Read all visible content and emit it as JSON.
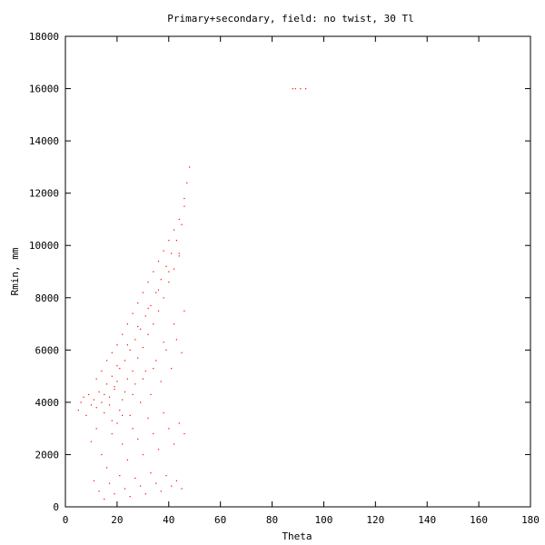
{
  "chart_data": {
    "type": "scatter",
    "title": "Primary+secondary, field: no twist, 30 Tl",
    "xlabel": "Theta",
    "ylabel": "Rmin, mm",
    "xlim": [
      0,
      180
    ],
    "ylim": [
      0,
      18000
    ],
    "xticks": [
      0,
      20,
      40,
      60,
      80,
      100,
      120,
      140,
      160,
      180
    ],
    "yticks": [
      0,
      2000,
      4000,
      6000,
      8000,
      10000,
      12000,
      14000,
      16000,
      18000
    ],
    "xtick_labels": [
      "0",
      "20",
      "40",
      "60",
      "80",
      "100",
      "120",
      "140",
      "160",
      "180"
    ],
    "ytick_labels": [
      "0",
      "2000",
      "4000",
      "6000",
      "8000",
      "10000",
      "12000",
      "14000",
      "16000",
      "18000"
    ],
    "grid": false,
    "legend": "none",
    "marker_color": "#ff0000",
    "series": [
      {
        "points": [
          [
            5,
            3700
          ],
          [
            6,
            4000
          ],
          [
            7,
            4200
          ],
          [
            8,
            3500
          ],
          [
            9,
            4300
          ],
          [
            10,
            3900
          ],
          [
            11,
            4100
          ],
          [
            12,
            3800
          ],
          [
            13,
            4400
          ],
          [
            14,
            4000
          ],
          [
            15,
            3600
          ],
          [
            16,
            4700
          ],
          [
            17,
            4200
          ],
          [
            18,
            5000
          ],
          [
            19,
            4500
          ],
          [
            20,
            4800
          ],
          [
            21,
            5300
          ],
          [
            22,
            4100
          ],
          [
            23,
            5600
          ],
          [
            24,
            4900
          ],
          [
            25,
            6000
          ],
          [
            26,
            5200
          ],
          [
            27,
            6400
          ],
          [
            28,
            5700
          ],
          [
            29,
            6800
          ],
          [
            30,
            6100
          ],
          [
            31,
            7300
          ],
          [
            32,
            6600
          ],
          [
            33,
            7700
          ],
          [
            34,
            7000
          ],
          [
            35,
            8200
          ],
          [
            36,
            7500
          ],
          [
            37,
            8700
          ],
          [
            38,
            8000
          ],
          [
            39,
            9200
          ],
          [
            40,
            8600
          ],
          [
            41,
            9700
          ],
          [
            42,
            9100
          ],
          [
            43,
            10200
          ],
          [
            44,
            9700
          ],
          [
            45,
            10800
          ],
          [
            46,
            11500
          ],
          [
            47,
            12400
          ],
          [
            48,
            13000
          ],
          [
            10,
            2500
          ],
          [
            12,
            3000
          ],
          [
            14,
            2000
          ],
          [
            16,
            1500
          ],
          [
            18,
            2800
          ],
          [
            20,
            3200
          ],
          [
            22,
            2400
          ],
          [
            24,
            1800
          ],
          [
            26,
            3000
          ],
          [
            28,
            2600
          ],
          [
            30,
            2000
          ],
          [
            32,
            3400
          ],
          [
            34,
            2800
          ],
          [
            36,
            2200
          ],
          [
            38,
            3600
          ],
          [
            40,
            3000
          ],
          [
            42,
            2400
          ],
          [
            44,
            3200
          ],
          [
            46,
            2800
          ],
          [
            11,
            1000
          ],
          [
            13,
            600
          ],
          [
            15,
            300
          ],
          [
            17,
            900
          ],
          [
            19,
            500
          ],
          [
            21,
            1200
          ],
          [
            23,
            700
          ],
          [
            25,
            400
          ],
          [
            27,
            1100
          ],
          [
            29,
            800
          ],
          [
            31,
            500
          ],
          [
            33,
            1300
          ],
          [
            35,
            900
          ],
          [
            37,
            600
          ],
          [
            39,
            1200
          ],
          [
            41,
            800
          ],
          [
            43,
            1000
          ],
          [
            45,
            700
          ],
          [
            12,
            4900
          ],
          [
            14,
            5200
          ],
          [
            16,
            5600
          ],
          [
            18,
            5900
          ],
          [
            20,
            6200
          ],
          [
            22,
            6600
          ],
          [
            24,
            7000
          ],
          [
            26,
            7400
          ],
          [
            28,
            7800
          ],
          [
            30,
            8200
          ],
          [
            32,
            8600
          ],
          [
            34,
            9000
          ],
          [
            36,
            9400
          ],
          [
            38,
            9800
          ],
          [
            40,
            10200
          ],
          [
            42,
            10600
          ],
          [
            44,
            11000
          ],
          [
            46,
            11800
          ],
          [
            15,
            4300
          ],
          [
            17,
            3900
          ],
          [
            19,
            4600
          ],
          [
            21,
            3700
          ],
          [
            23,
            4400
          ],
          [
            25,
            3500
          ],
          [
            27,
            4700
          ],
          [
            29,
            4000
          ],
          [
            31,
            5200
          ],
          [
            33,
            4300
          ],
          [
            35,
            5600
          ],
          [
            37,
            4800
          ],
          [
            39,
            6000
          ],
          [
            41,
            5300
          ],
          [
            43,
            6400
          ],
          [
            45,
            5900
          ],
          [
            20,
            5400
          ],
          [
            24,
            6200
          ],
          [
            28,
            6900
          ],
          [
            32,
            7600
          ],
          [
            36,
            8300
          ],
          [
            40,
            9000
          ],
          [
            44,
            9600
          ],
          [
            18,
            3300
          ],
          [
            22,
            3500
          ],
          [
            26,
            4300
          ],
          [
            30,
            4900
          ],
          [
            34,
            5300
          ],
          [
            38,
            6300
          ],
          [
            42,
            7000
          ],
          [
            46,
            7500
          ],
          [
            88,
            16000
          ],
          [
            89,
            16000
          ],
          [
            91,
            16000
          ],
          [
            93,
            16000
          ]
        ]
      }
    ]
  }
}
